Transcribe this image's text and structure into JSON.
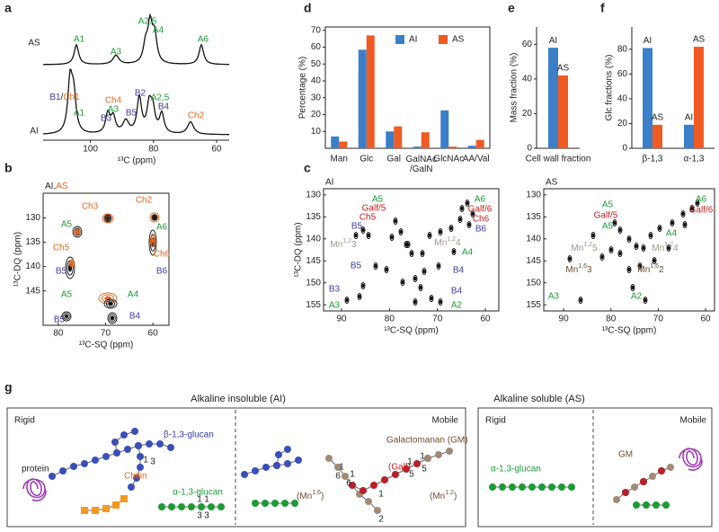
{
  "panel_labels": {
    "a": "a",
    "b": "b",
    "c": "c",
    "d": "d",
    "e": "e",
    "f": "f",
    "g": "g"
  },
  "panel_a": {
    "x_label": "¹³C (ppm)",
    "xlim": [
      115,
      56
    ],
    "xticks": [
      100,
      80,
      60
    ],
    "traces": [
      {
        "name": "AS",
        "peaks": [
          "A1",
          "A3",
          "A2,5",
          "A4",
          "A6"
        ]
      },
      {
        "name": "AI",
        "peaks": [
          [
            "B1",
            "/",
            "Ch1"
          ],
          "A1",
          "Ch4",
          "A3",
          "B3",
          "B5",
          "B2",
          "A2,5",
          "B4",
          "Ch2"
        ]
      }
    ]
  },
  "panel_b": {
    "title": [
      "AI,",
      "AS"
    ],
    "x_label": "¹³C-SQ (ppm)",
    "y_label": "¹³C-DQ (ppm)",
    "xlim": [
      83.2,
      56.6
    ],
    "ylim": [
      124.9,
      152.1
    ],
    "xticks": [
      80,
      70,
      60
    ],
    "yticks": [
      130,
      135,
      140,
      145
    ],
    "peaks": [
      "Ch3",
      "Ch2",
      "A5",
      "A6",
      "Ch5",
      "Ch6",
      "B5",
      "B6",
      "A5",
      "A4",
      "B5",
      "B4"
    ]
  },
  "panel_c": [
    {
      "title": "AI",
      "x_label": "¹³C-SQ (ppm)",
      "y_label": "¹³C-DQ (ppm)",
      "xlim": [
        93.75,
        57.2
      ],
      "ylim": [
        128.6,
        156.4
      ],
      "xticks": [
        90,
        80,
        70,
        60
      ],
      "yticks": [
        130,
        135,
        140,
        145,
        150,
        155
      ],
      "peaks": [
        "A5",
        "Galf/5",
        "Ch5",
        "B5",
        {
          "base": "Mn",
          "sup": "1,2",
          "tail": "3"
        },
        {
          "base": "Mn",
          "sup": "1,2",
          "tail": "4"
        },
        "B5",
        "B3",
        "A3",
        "A6",
        "Galf/6",
        "Ch6",
        "B6",
        "A4",
        "B4",
        "B4",
        "A2"
      ]
    },
    {
      "title": "AS",
      "x_label": "¹³C-SQ (ppm)",
      "xlim": [
        94.2,
        58.1
      ],
      "ylim": [
        128.6,
        156.4
      ],
      "xticks": [
        90,
        80,
        70,
        60
      ],
      "yticks": [
        130,
        135,
        140,
        145,
        150,
        155
      ],
      "peaks": [
        "A5",
        "Galf/5",
        "A5",
        {
          "base": "Mn",
          "sup": "1,2",
          "tail": "5"
        },
        {
          "base": "Mn",
          "sup": "1,6",
          "tail": "3"
        },
        {
          "base": "Mn",
          "sup": "1,6",
          "tail": "2"
        },
        {
          "base": "Mn",
          "sup": "1,2",
          "tail": "4"
        },
        "A4",
        "A6",
        "Galf/6",
        "A3",
        "A2"
      ]
    }
  ],
  "chart_data": [
    {
      "type": "bar",
      "y_label": "Percentage (%)",
      "categories": [
        "Man",
        "Glc",
        "Gal",
        "GalNAc\n/GalN",
        "GlcNAc",
        "AA/Val"
      ],
      "series": [
        {
          "name": "AI",
          "color": "#3b7fc8",
          "values": [
            7,
            58.5,
            10,
            1,
            22.5,
            1.5
          ]
        },
        {
          "name": "AS",
          "color": "#f05a23",
          "values": [
            4,
            67,
            13,
            9.5,
            1,
            5
          ]
        }
      ],
      "ylim": [
        0,
        72
      ],
      "yticks": [
        10,
        20,
        30,
        40,
        50,
        60,
        70
      ],
      "legend": "top-right"
    },
    {
      "type": "bar",
      "y_label": "Mass fraction (%)",
      "categories": [
        "Cell wall fraction"
      ],
      "series": [
        {
          "name": "AI",
          "color": "#3b7fc8",
          "values": [
            58
          ]
        },
        {
          "name": "AS",
          "color": "#f05a23",
          "values": [
            42
          ]
        }
      ],
      "ylim": [
        0,
        70
      ],
      "yticks": [
        0,
        20,
        40,
        60
      ]
    },
    {
      "type": "bar",
      "y_label": "Glc fractions (%)",
      "categories": [
        "β-1,3",
        "α-1,3"
      ],
      "series": [
        {
          "name": "AI",
          "color": "#3b7fc8",
          "values": [
            81,
            19
          ]
        },
        {
          "name": "AS",
          "color": "#f05a23",
          "values": [
            19,
            82
          ]
        }
      ],
      "ylim": [
        0,
        98
      ],
      "yticks": [
        0,
        20,
        40,
        60,
        80
      ]
    }
  ],
  "panel_g": {
    "sections": [
      {
        "title": "Alkaline insoluble (AI)",
        "left": "Rigid",
        "right": "Mobile",
        "labels": [
          "β-1,3-glucan",
          "protein",
          "Chitin",
          "α-1,3-glucan",
          "Galactomanan (GM)",
          "(Galf)",
          {
            "base": "(Mn",
            "sup": "1,6",
            "tail": ")"
          },
          {
            "base": "(Mn",
            "sup": "1,2",
            "tail": ")"
          }
        ],
        "linkages": [
          "1",
          "3",
          "1",
          "1",
          "3",
          "3",
          "1",
          "6",
          "1",
          "6",
          "1",
          "5",
          "1",
          "5",
          "1",
          "2"
        ]
      },
      {
        "title": "Alkaline soluble (AS)",
        "left": "Rigid",
        "right": "Mobile",
        "labels": [
          "α-1,3-glucan",
          "GM"
        ]
      }
    ]
  }
}
